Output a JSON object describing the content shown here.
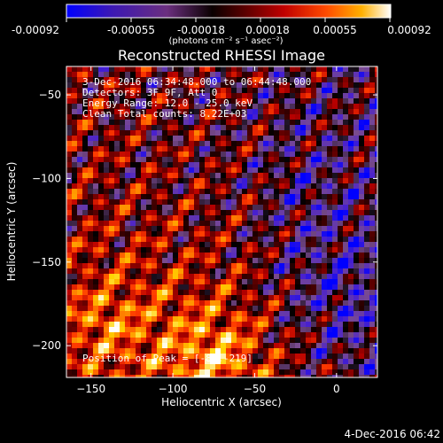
{
  "colorbar": {
    "tick_labels": [
      "-0.00092",
      "-0.00055",
      "-0.00018",
      "0.00018",
      "0.00055",
      "0.00092"
    ],
    "units_label": "(photons cm⁻² s⁻¹ asec⁻²)"
  },
  "title": "Reconstructed RHESSI Image",
  "plot": {
    "x_label": "Heliocentric X (arcsec)",
    "y_label": "Heliocentric Y (arcsec)",
    "x_ticks": [
      {
        "value": -150,
        "label": "−150"
      },
      {
        "value": -100,
        "label": "−100"
      },
      {
        "value": -50,
        "label": "−50"
      },
      {
        "value": 0,
        "label": "0"
      }
    ],
    "y_ticks": [
      {
        "value": -50,
        "label": "−50"
      },
      {
        "value": -100,
        "label": "−100"
      },
      {
        "value": -150,
        "label": "−150"
      },
      {
        "value": -200,
        "label": "−200"
      }
    ],
    "x_range": [
      -165,
      25
    ],
    "y_range": [
      -219,
      -33
    ]
  },
  "annotations": {
    "time_range": "3-Dec-2016 06:34:48.000 to 06:44:48.000",
    "detectors": "Detectors: 3F 9F, Att 0",
    "energy_range": "Energy Range: 12.0 - 25.0 keV",
    "clean_counts": "Clean     Total counts: 8.22E+03",
    "peak_position": "Position of Peak = [-86,-219]"
  },
  "footer": {
    "timestamp": "4-Dec-2016 06:42"
  },
  "colors": {
    "background": "#000000",
    "foreground": "#ffffff",
    "colormap": [
      "#0000ff",
      "#4b22cc",
      "#7a4b8f",
      "#000000",
      "#5a0000",
      "#b80000",
      "#ff3a00",
      "#ff8c00",
      "#ffd400",
      "#ffffff"
    ]
  }
}
